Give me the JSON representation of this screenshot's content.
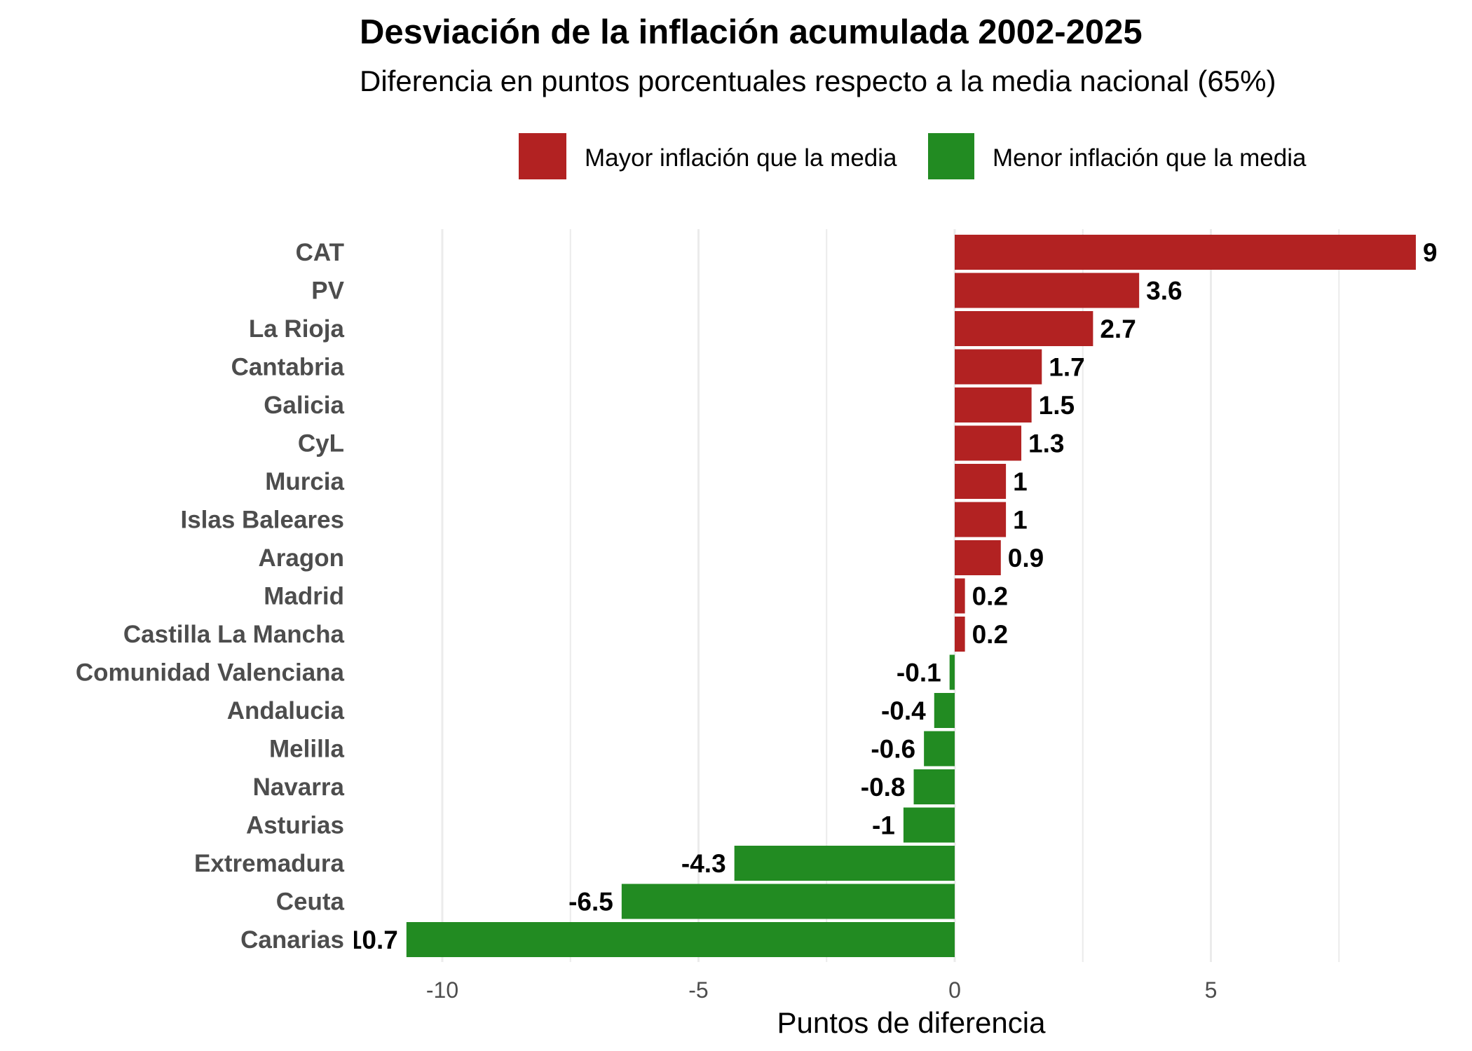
{
  "chart_data": {
    "type": "bar",
    "orientation": "horizontal",
    "title": "Desviación de la inflación acumulada 2002-2025",
    "subtitle": "Diferencia en puntos porcentuales respecto a la media nacional (65%)",
    "xlabel": "Puntos de diferencia",
    "ylabel": "",
    "xlim": [
      -11.2,
      9.6
    ],
    "xticks": [
      -10,
      -5,
      0,
      5
    ],
    "xtick_labels": [
      "-10",
      "-5",
      "0",
      "5"
    ],
    "grid": true,
    "legend_position": "top",
    "legend": [
      {
        "label": "Mayor inflación que la media",
        "color": "#B22222"
      },
      {
        "label": "Menor inflación que la media",
        "color": "#228B22"
      }
    ],
    "categories": [
      "CAT",
      "PV",
      "La Rioja",
      "Cantabria",
      "Galicia",
      "CyL",
      "Murcia",
      "Islas Baleares",
      "Aragon",
      "Madrid",
      "Castilla La Mancha",
      "Comunidad Valenciana",
      "Andalucia",
      "Melilla",
      "Navarra",
      "Asturias",
      "Extremadura",
      "Ceuta",
      "Canarias"
    ],
    "values": [
      9,
      3.6,
      2.7,
      1.7,
      1.5,
      1.3,
      1,
      1,
      0.9,
      0.2,
      0.2,
      -0.1,
      -0.4,
      -0.6,
      -0.8,
      -1,
      -4.3,
      -6.5,
      -10.7
    ],
    "labels": [
      "9",
      "3.6",
      "2.7",
      "1.7",
      "1.5",
      "1.3",
      "1",
      "1",
      "0.9",
      "0.2",
      "0.2",
      "-0.1",
      "-0.4",
      "-0.6",
      "-0.8",
      "-1",
      "-4.3",
      "-6.5",
      "-10.7"
    ]
  }
}
